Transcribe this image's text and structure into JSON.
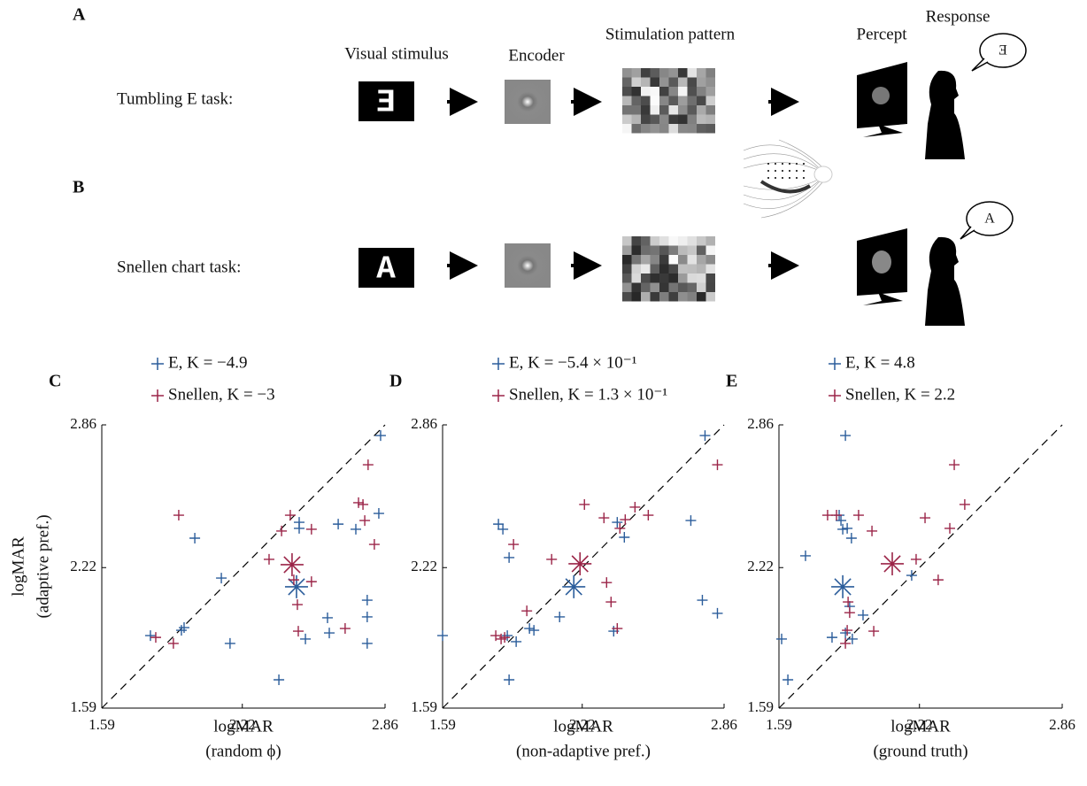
{
  "panel_labels": [
    "A",
    "B",
    "C",
    "D",
    "E"
  ],
  "diagram": {
    "column_headers": [
      "Visual stimulus",
      "Encoder",
      "Stimulation pattern",
      "Percept",
      "Response"
    ],
    "rows": [
      {
        "label": "Tumbling E task:",
        "stimulus": "E",
        "response": "E"
      },
      {
        "label": "Snellen chart task:",
        "stimulus": "A",
        "response": "A"
      }
    ]
  },
  "chart_data": [
    {
      "type": "scatter",
      "x_label": "logMAR",
      "x_sublabel": "(random ϕ)",
      "y_label": "logMAR",
      "y_sublabel": "(adaptive pref.)",
      "xlim": [
        1.59,
        2.86
      ],
      "ylim": [
        1.59,
        2.86
      ],
      "xticks": [
        1.59,
        2.22,
        2.86
      ],
      "yticks": [
        1.59,
        2.22,
        2.86
      ],
      "diagonal": true,
      "series": [
        {
          "name": "E, K = −4.9",
          "color": "#2b5d9b",
          "x": [
            1.808,
            1.947,
            1.959,
            2.007,
            2.126,
            2.165,
            2.384,
            2.475,
            2.475,
            2.503,
            2.602,
            2.61,
            2.65,
            2.729,
            2.78,
            2.78,
            2.78,
            2.832,
            2.84
          ],
          "values": [
            1.915,
            1.939,
            1.951,
            2.352,
            2.173,
            1.88,
            1.717,
            2.423,
            2.396,
            1.9,
            1.995,
            1.927,
            2.415,
            2.392,
            2.074,
            1.999,
            1.88,
            2.463,
            2.812
          ],
          "mean_x": 2.463,
          "mean_y": 2.134
        },
        {
          "name": "Snellen, K = −3",
          "color": "#9b2548",
          "x": [
            1.832,
            1.911,
            1.935,
            2.34,
            2.396,
            2.435,
            2.451,
            2.467,
            2.471,
            2.53,
            2.53,
            2.681,
            2.741,
            2.761,
            2.769,
            2.784,
            2.812
          ],
          "values": [
            1.907,
            1.88,
            2.455,
            2.257,
            2.384,
            2.455,
            2.165,
            2.054,
            1.935,
            2.392,
            2.157,
            1.947,
            2.511,
            2.503,
            2.431,
            2.681,
            2.324
          ],
          "mean_x": 2.443,
          "mean_y": 2.233
        }
      ]
    },
    {
      "type": "scatter",
      "x_label": "logMAR",
      "x_sublabel": "(non-adaptive pref.)",
      "xlim": [
        1.59,
        2.86
      ],
      "ylim": [
        1.59,
        2.86
      ],
      "xticks": [
        1.59,
        2.22,
        2.86
      ],
      "yticks": [
        1.59,
        2.22,
        2.86
      ],
      "diagonal": true,
      "series": [
        {
          "name": "E, K = −5.4 × 10⁻¹",
          "color": "#2b5d9b",
          "x": [
            1.59,
            1.842,
            1.862,
            1.89,
            1.89,
            1.882,
            1.922,
            1.982,
            2.002,
            2.118,
            2.362,
            2.378,
            2.41,
            2.71,
            2.762,
            2.774,
            2.83
          ],
          "values": [
            1.915,
            2.415,
            2.392,
            2.265,
            1.717,
            1.915,
            1.888,
            1.947,
            1.939,
            1.999,
            1.935,
            2.423,
            2.356,
            2.431,
            2.074,
            2.812,
            2.015
          ],
          "mean_x": 2.182,
          "mean_y": 2.134
        },
        {
          "name": "Snellen, K = 1.3 × 10⁻¹",
          "color": "#9b2548",
          "x": [
            1.83,
            1.854,
            1.87,
            1.91,
            1.97,
            2.082,
            2.23,
            2.33,
            2.35,
            2.378,
            2.39,
            2.414,
            2.458,
            2.518,
            2.83,
            2.318
          ],
          "values": [
            1.915,
            1.9,
            1.907,
            2.324,
            2.026,
            2.257,
            2.503,
            2.153,
            2.066,
            1.947,
            2.396,
            2.435,
            2.491,
            2.455,
            2.681,
            2.443
          ],
          "mean_x": 2.21,
          "mean_y": 2.237
        }
      ]
    },
    {
      "type": "scatter",
      "x_label": "logMAR",
      "x_sublabel": "(ground truth)",
      "xlim": [
        1.59,
        2.86
      ],
      "ylim": [
        1.59,
        2.86
      ],
      "xticks": [
        1.59,
        2.22,
        2.86
      ],
      "yticks": [
        1.59,
        2.22,
        2.86
      ],
      "diagonal": true,
      "series": [
        {
          "name": "E, K = 4.8",
          "color": "#2b5d9b",
          "x": [
            1.602,
            1.63,
            1.709,
            1.828,
            1.86,
            1.868,
            1.876,
            1.888,
            1.888,
            1.896,
            1.915,
            1.907,
            1.919,
            1.967,
            2.185
          ],
          "values": [
            1.9,
            1.717,
            2.273,
            1.907,
            2.455,
            2.431,
            2.392,
            2.812,
            1.927,
            2.396,
            2.352,
            2.046,
            1.9,
            2.007,
            2.185
          ],
          "mean_x": 1.876,
          "mean_y": 2.134
        },
        {
          "name": "Snellen, K = 2.2",
          "color": "#9b2548",
          "x": [
            1.808,
            1.848,
            1.888,
            1.896,
            1.9,
            1.907,
            1.947,
            2.007,
            2.015,
            2.205,
            2.245,
            2.304,
            2.356,
            2.376,
            2.423
          ],
          "values": [
            2.455,
            2.455,
            1.88,
            1.939,
            2.066,
            2.018,
            2.455,
            2.384,
            1.935,
            2.257,
            2.443,
            2.165,
            2.396,
            2.681,
            2.503
          ],
          "mean_x": 2.098,
          "mean_y": 2.237
        }
      ]
    }
  ]
}
